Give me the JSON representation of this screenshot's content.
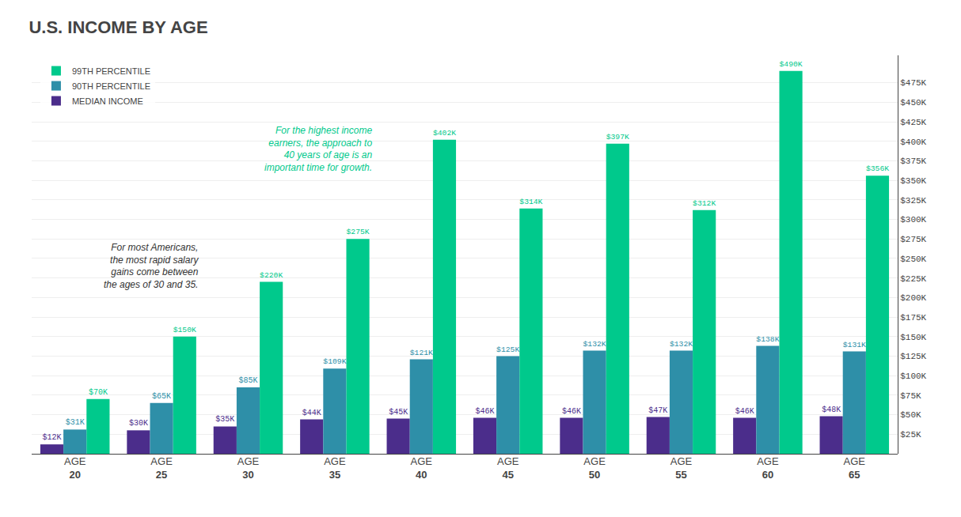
{
  "chart_data": {
    "type": "bar",
    "title": "U.S. INCOME BY AGE",
    "categories": [
      "AGE\n20",
      "AGE\n25",
      "AGE\n30",
      "AGE\n35",
      "AGE\n40",
      "AGE\n45",
      "AGE\n50",
      "AGE\n55",
      "AGE\n60",
      "AGE\n65"
    ],
    "series": [
      {
        "name": "MEDIAN INCOME",
        "color": "#4B2D8B",
        "values": [
          12000,
          30000,
          35000,
          44000,
          45000,
          46000,
          46000,
          47000,
          46000,
          48000
        ],
        "value_labels": [
          "$12K",
          "$30K",
          "$35K",
          "$44K",
          "$45K",
          "$46K",
          "$46K",
          "$47K",
          "$46K",
          "$48K"
        ]
      },
      {
        "name": "90TH PERCENTILE",
        "color": "#2E8FA8",
        "values": [
          31000,
          65000,
          85000,
          109000,
          121000,
          125000,
          132000,
          132000,
          138000,
          131000
        ],
        "value_labels": [
          "$31K",
          "$65K",
          "$85K",
          "$109K",
          "$121K",
          "$125K",
          "$132K",
          "$132K",
          "$138K",
          "$131K"
        ]
      },
      {
        "name": "99TH PERCENTILE",
        "color": "#00C98C",
        "values": [
          70000,
          150000,
          220000,
          275000,
          402000,
          314000,
          397000,
          312000,
          490000,
          356000
        ],
        "value_labels": [
          "$70K",
          "$150K",
          "$220K",
          "$275K",
          "$402K",
          "$314K",
          "$397K",
          "$312K",
          "$490K",
          "$356K"
        ]
      }
    ],
    "ylim": [
      0,
      510000
    ],
    "yticks": [
      {
        "value": 25000,
        "label": "$25K"
      },
      {
        "value": 50000,
        "label": "$50K"
      },
      {
        "value": 75000,
        "label": "$75K"
      },
      {
        "value": 100000,
        "label": "$100K"
      },
      {
        "value": 125000,
        "label": "$125K"
      },
      {
        "value": 150000,
        "label": "$150K"
      },
      {
        "value": 175000,
        "label": "$175K"
      },
      {
        "value": 200000,
        "label": "$200K"
      },
      {
        "value": 225000,
        "label": "$225K"
      },
      {
        "value": 250000,
        "label": "$250K"
      },
      {
        "value": 275000,
        "label": "$275K"
      },
      {
        "value": 300000,
        "label": "$300K"
      },
      {
        "value": 325000,
        "label": "$325K"
      },
      {
        "value": 350000,
        "label": "$350K"
      },
      {
        "value": 375000,
        "label": "$375K"
      },
      {
        "value": 400000,
        "label": "$400K"
      },
      {
        "value": 425000,
        "label": "$425K"
      },
      {
        "value": 450000,
        "label": "$450K"
      },
      {
        "value": 475000,
        "label": "$475K"
      }
    ],
    "grid": true,
    "data_labels": true,
    "legend": "upper left",
    "annotations": [
      {
        "text": "For most Americans,\nthe most rapid salary\ngains come between\nthe ages of 30 and 35.",
        "x": 1.45,
        "y": 240000,
        "color": "#333333"
      },
      {
        "text": "For the highest income\nearners, the approach to\n40 years of age is an\nimportant time for growth.",
        "x": 3.45,
        "y": 390000,
        "color": "#00C98C"
      }
    ]
  }
}
